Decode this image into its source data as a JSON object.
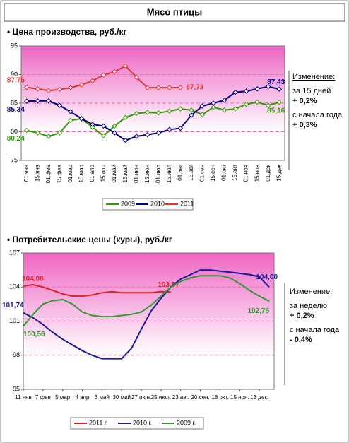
{
  "page_title": "Мясо птицы",
  "chart_data": [
    {
      "type": "line",
      "title": "• Цена производства, руб./кг",
      "categories": [
        "01.янв",
        "15.янв",
        "01.фев",
        "15.фев",
        "01.мар",
        "15.мар",
        "01.апр",
        "15.апр",
        "01.май",
        "15.май",
        "01.июн",
        "15.июн",
        "01.июл",
        "15.июл",
        "01.авг",
        "15.авг",
        "01.сен",
        "15.сен",
        "01.окт",
        "15.окт",
        "01.ноя",
        "15.ноя",
        "01.дек",
        "15.дек"
      ],
      "series": [
        {
          "name": "2009",
          "color": "#339900",
          "values": [
            80.24,
            79.8,
            79.2,
            79.8,
            82.0,
            82.3,
            80.8,
            79.3,
            81.0,
            82.5,
            83.2,
            83.4,
            83.3,
            83.6,
            84.0,
            83.8,
            83.0,
            84.3,
            83.8,
            84.0,
            84.8,
            85.2,
            84.6,
            85.16
          ],
          "value_labels": [
            "80,24",
            null,
            null,
            null,
            null,
            null,
            null,
            null,
            null,
            null,
            null,
            null,
            null,
            null,
            null,
            null,
            null,
            null,
            null,
            null,
            null,
            null,
            null,
            "85,16"
          ]
        },
        {
          "name": "2010",
          "color": "#000080",
          "values": [
            85.34,
            85.4,
            85.4,
            84.6,
            83.5,
            82.3,
            81.3,
            81.0,
            79.8,
            78.5,
            79.2,
            79.5,
            79.8,
            80.4,
            80.6,
            82.9,
            84.5,
            85.0,
            85.5,
            86.9,
            87.1,
            87.5,
            87.9,
            87.43
          ],
          "value_labels": [
            "85,34",
            null,
            null,
            null,
            null,
            null,
            null,
            null,
            null,
            null,
            null,
            null,
            null,
            null,
            null,
            null,
            null,
            null,
            null,
            null,
            null,
            null,
            null,
            "87,43"
          ]
        },
        {
          "name": "2011",
          "color": "#e8302a",
          "values": [
            87.76,
            87.5,
            87.2,
            87.4,
            87.7,
            88.2,
            88.9,
            89.9,
            90.5,
            91.5,
            89.5,
            87.7,
            87.7,
            87.7,
            87.73,
            null,
            null,
            null,
            null,
            null,
            null,
            null,
            null,
            null
          ],
          "value_labels": [
            "87,76",
            null,
            null,
            null,
            null,
            null,
            null,
            null,
            null,
            null,
            null,
            null,
            null,
            null,
            "87,73",
            null,
            null,
            null,
            null,
            null,
            null,
            null,
            null,
            null
          ]
        }
      ],
      "ylim": [
        75,
        95
      ],
      "yticks": [
        75,
        80,
        85,
        90,
        95
      ],
      "grid": true,
      "side_note": [
        "Изменение:",
        "за 15 дней",
        "+ 0,2%",
        "с начала года",
        "+ 0,3%"
      ]
    },
    {
      "type": "line",
      "title": "• Потребительские цены (куры), руб./кг",
      "x": [
        0,
        2,
        4,
        6,
        8,
        10,
        12,
        14,
        16,
        18,
        20,
        22,
        24,
        26,
        28,
        30,
        32,
        34,
        36,
        38,
        40,
        42,
        44,
        46,
        48,
        50
      ],
      "xlim": [
        0,
        51
      ],
      "xticks": [
        {
          "value": 0,
          "label": "11 янв"
        },
        {
          "value": 4,
          "label": "7 фев"
        },
        {
          "value": 8,
          "label": "5 мар"
        },
        {
          "value": 12,
          "label": "4 апр"
        },
        {
          "value": 16,
          "label": "3 май"
        },
        {
          "value": 20,
          "label": "30 май"
        },
        {
          "value": 24,
          "label": "27 июн."
        },
        {
          "value": 28,
          "label": "25 июл."
        },
        {
          "value": 32,
          "label": "23 авг."
        },
        {
          "value": 36,
          "label": "20 сен."
        },
        {
          "value": 40,
          "label": "18 окт."
        },
        {
          "value": 44,
          "label": "15 ноя."
        },
        {
          "value": 48,
          "label": "13 дек."
        }
      ],
      "series": [
        {
          "name": "2011 г.",
          "color": "#e02020",
          "values": [
            104.08,
            104.2,
            104.0,
            103.7,
            103.4,
            103.2,
            103.2,
            103.3,
            103.5,
            103.6,
            103.5,
            103.5,
            103.5,
            103.5,
            103.6,
            103.57,
            null,
            null,
            null,
            null,
            null,
            null,
            null,
            null,
            null,
            null
          ],
          "value_labels": [
            "104,08",
            null,
            null,
            null,
            null,
            null,
            null,
            null,
            null,
            null,
            null,
            null,
            null,
            null,
            null,
            "103,57",
            null,
            null,
            null,
            null,
            null,
            null,
            null,
            null,
            null,
            null
          ]
        },
        {
          "name": "2010 г.",
          "color": "#1a1a9a",
          "values": [
            101.74,
            101.3,
            100.7,
            100.0,
            99.4,
            98.9,
            98.4,
            98.0,
            97.7,
            97.7,
            97.7,
            98.6,
            100.3,
            101.9,
            103.0,
            104.0,
            104.7,
            105.1,
            105.5,
            105.5,
            105.4,
            105.3,
            105.2,
            105.1,
            104.9,
            104.0
          ],
          "value_labels": [
            "101,74",
            null,
            null,
            null,
            null,
            null,
            null,
            null,
            null,
            null,
            null,
            null,
            null,
            null,
            null,
            null,
            null,
            null,
            null,
            null,
            null,
            null,
            null,
            null,
            null,
            "104,00"
          ]
        },
        {
          "name": "2009 г.",
          "color": "#339933",
          "values": [
            100.56,
            101.6,
            102.5,
            102.8,
            102.9,
            102.5,
            101.8,
            101.5,
            101.4,
            101.4,
            101.5,
            101.6,
            101.8,
            102.4,
            103.2,
            104.0,
            104.5,
            104.8,
            105.0,
            105.0,
            105.0,
            104.8,
            104.3,
            103.7,
            103.2,
            102.76
          ],
          "value_labels": [
            "100,56",
            null,
            null,
            null,
            null,
            null,
            null,
            null,
            null,
            null,
            null,
            null,
            null,
            null,
            null,
            null,
            null,
            null,
            null,
            null,
            null,
            null,
            null,
            null,
            null,
            "102,76"
          ]
        }
      ],
      "ylim": [
        95,
        107
      ],
      "yticks": [
        95,
        98,
        101,
        104,
        107
      ],
      "grid": true,
      "side_note": [
        "Изменение:",
        "за неделю",
        "+ 0,2%",
        "с начала года",
        "- 0,4%"
      ]
    }
  ]
}
